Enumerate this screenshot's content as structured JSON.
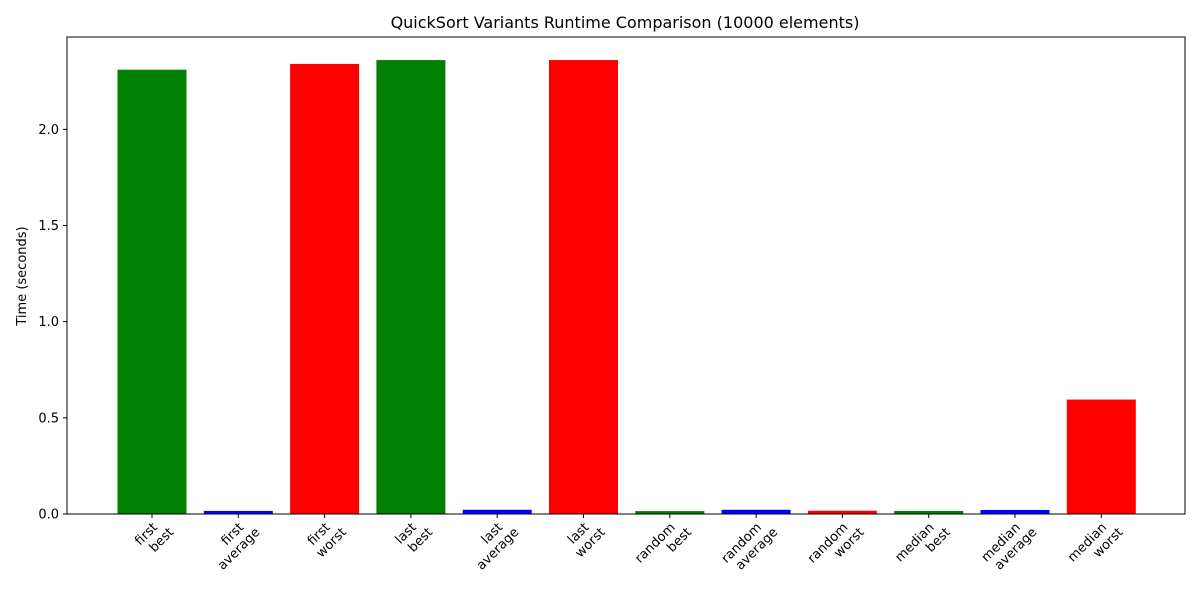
{
  "chart_data": {
    "type": "bar",
    "title": "QuickSort Variants Runtime Comparison (10000 elements)",
    "xlabel": "",
    "ylabel": "Time (seconds)",
    "ylim": [
      0,
      2.48
    ],
    "yticks": [
      "0.0",
      "0.5",
      "1.0",
      "1.5",
      "2.0"
    ],
    "grid": false,
    "categories": [
      [
        "first",
        "best"
      ],
      [
        "first",
        "average"
      ],
      [
        "first",
        "worst"
      ],
      [
        "last",
        "best"
      ],
      [
        "last",
        "average"
      ],
      [
        "last",
        "worst"
      ],
      [
        "random",
        "best"
      ],
      [
        "random",
        "average"
      ],
      [
        "random",
        "worst"
      ],
      [
        "median",
        "best"
      ],
      [
        "median",
        "average"
      ],
      [
        "median",
        "worst"
      ]
    ],
    "values": [
      2.31,
      0.016,
      2.34,
      2.36,
      0.022,
      2.36,
      0.015,
      0.022,
      0.017,
      0.016,
      0.021,
      0.595
    ],
    "colors": {
      "best": "#008000",
      "average": "#0000ff",
      "worst": "#ff0000"
    }
  }
}
